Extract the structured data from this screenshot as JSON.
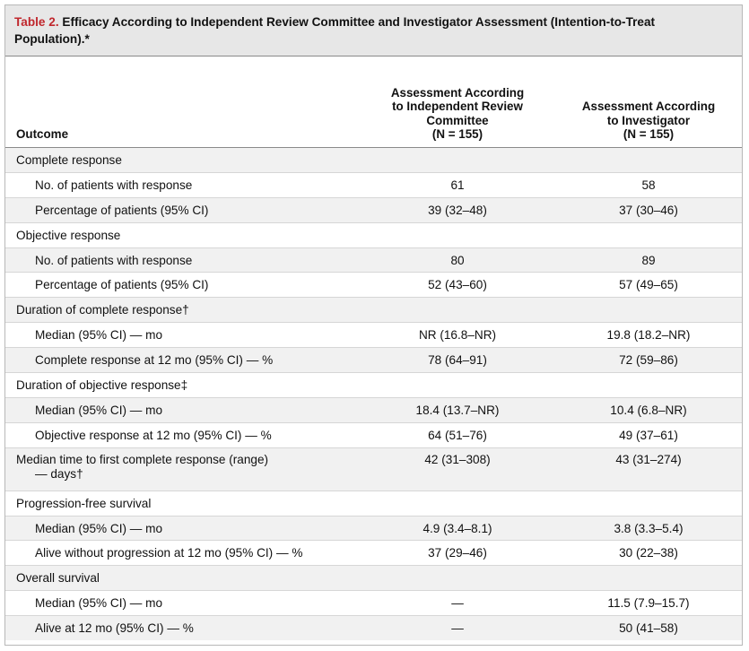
{
  "table": {
    "label": "Table 2.",
    "title": "Efficacy According to Independent Review Committee and Investigator Assessment (Intention-to-Treat Population).*",
    "headers": {
      "outcome": "Outcome",
      "irc": [
        "Assessment According",
        "to Independent Review",
        "Committee",
        "(N = 155)"
      ],
      "investigator": [
        "Assessment According",
        "to Investigator",
        "(N = 155)"
      ]
    },
    "rows": [
      {
        "label": "Complete response",
        "irc": "",
        "inv": "",
        "indent": false,
        "alt": true
      },
      {
        "label": "No. of patients with response",
        "irc": "61",
        "inv": "58",
        "indent": true,
        "alt": false
      },
      {
        "label": "Percentage of patients (95% CI)",
        "irc": "39 (32–48)",
        "inv": "37 (30–46)",
        "indent": true,
        "alt": true
      },
      {
        "label": "Objective response",
        "irc": "",
        "inv": "",
        "indent": false,
        "alt": false
      },
      {
        "label": "No. of patients with response",
        "irc": "80",
        "inv": "89",
        "indent": true,
        "alt": true
      },
      {
        "label": "Percentage of patients (95% CI)",
        "irc": "52 (43–60)",
        "inv": "57 (49–65)",
        "indent": true,
        "alt": false
      },
      {
        "label": "Duration of complete response†",
        "irc": "",
        "inv": "",
        "indent": false,
        "alt": true
      },
      {
        "label": "Median (95% CI) — mo",
        "irc": "NR (16.8–NR)",
        "inv": "19.8 (18.2–NR)",
        "indent": true,
        "alt": false
      },
      {
        "label": "Complete response at 12 mo (95% CI) — %",
        "irc": "78 (64–91)",
        "inv": "72 (59–86)",
        "indent": true,
        "alt": true
      },
      {
        "label": "Duration of objective response‡",
        "irc": "",
        "inv": "",
        "indent": false,
        "alt": false
      },
      {
        "label": "Median (95% CI) — mo",
        "irc": "18.4 (13.7–NR)",
        "inv": "10.4 (6.8–NR)",
        "indent": true,
        "alt": true
      },
      {
        "label": "Objective response at 12 mo (95% CI) — %",
        "irc": "64 (51–76)",
        "inv": "49 (37–61)",
        "indent": true,
        "alt": false
      },
      {
        "label": "Median time to first complete response (range)",
        "label2": "— days†",
        "irc": "42 (31–308)",
        "inv": "43 (31–274)",
        "indent": false,
        "alt": true,
        "tall": true
      },
      {
        "label": "Progression-free survival",
        "irc": "",
        "inv": "",
        "indent": false,
        "alt": false
      },
      {
        "label": "Median (95% CI) — mo",
        "irc": "4.9 (3.4–8.1)",
        "inv": "3.8 (3.3–5.4)",
        "indent": true,
        "alt": true
      },
      {
        "label": "Alive without progression at 12 mo (95% CI) — %",
        "irc": "37 (29–46)",
        "inv": "30 (22–38)",
        "indent": true,
        "alt": false
      },
      {
        "label": "Overall survival",
        "irc": "",
        "inv": "",
        "indent": false,
        "alt": true
      },
      {
        "label": "Median (95% CI) — mo",
        "irc": "—",
        "inv": "11.5 (7.9–15.7)",
        "indent": true,
        "alt": false
      },
      {
        "label": "Alive at 12 mo (95% CI) — %",
        "irc": "—",
        "inv": "50 (41–58)",
        "indent": true,
        "alt": true
      }
    ]
  }
}
